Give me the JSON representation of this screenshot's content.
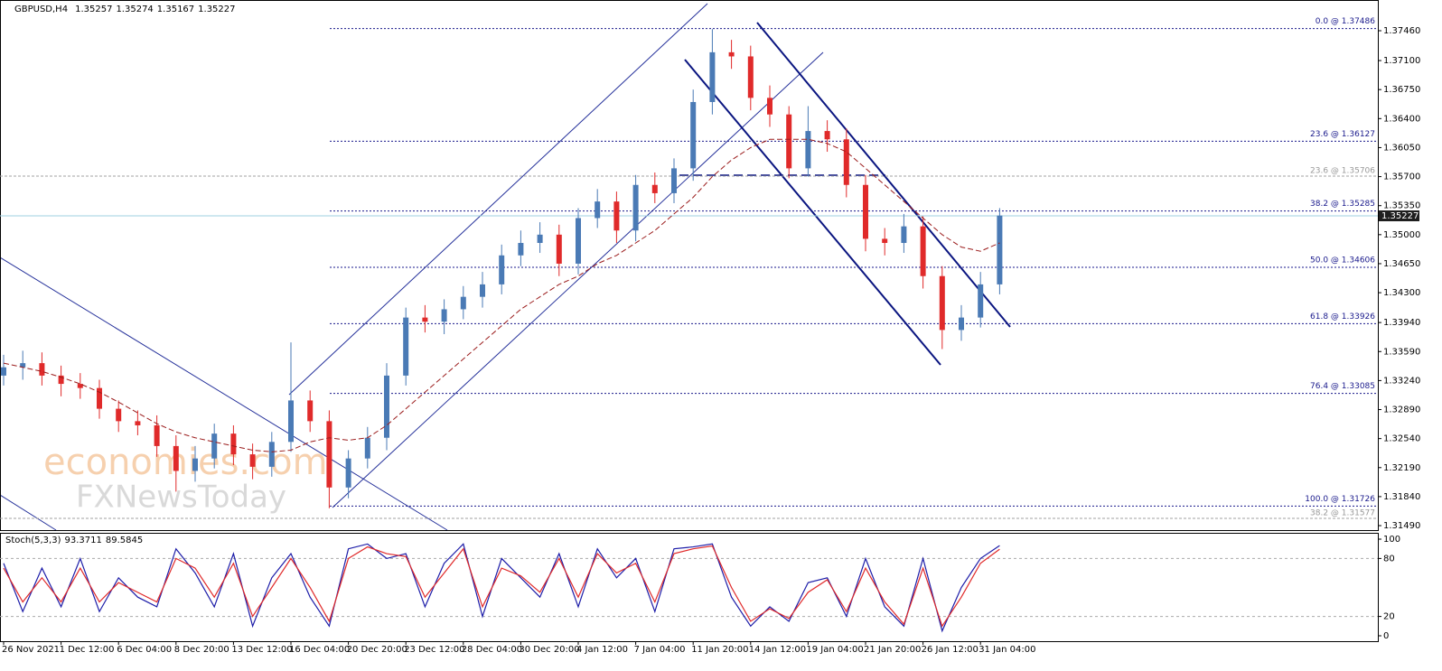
{
  "chart_data": [
    {
      "type": "candlestick",
      "title": "GBPUSD,H4",
      "header_values": [
        1.35257,
        1.35274,
        1.35167,
        1.35227
      ],
      "last_price": 1.35227,
      "categories": [
        "26 Nov 2021",
        null,
        null,
        "1 Dec 12:00",
        null,
        null,
        "6 Dec 04:00",
        null,
        null,
        "8 Dec 20:00",
        null,
        null,
        "13 Dec 12:00",
        null,
        null,
        "16 Dec 04:00",
        null,
        null,
        "20 Dec 20:00",
        null,
        null,
        "23 Dec 12:00",
        null,
        null,
        "28 Dec 04:00",
        null,
        null,
        "30 Dec 20:00",
        null,
        null,
        "4 Jan 12:00",
        null,
        null,
        "7 Jan 04:00",
        null,
        null,
        "11 Jan 20:00",
        null,
        null,
        "14 Jan 12:00",
        null,
        null,
        "19 Jan 04:00",
        null,
        null,
        "21 Jan 20:00",
        null,
        null,
        "26 Jan 12:00",
        null,
        null,
        "31 Jan 04:00",
        null
      ],
      "open": [
        1.333,
        1.334,
        1.3345,
        1.333,
        1.332,
        1.3315,
        1.329,
        1.3275,
        1.327,
        1.3245,
        1.3215,
        1.323,
        1.326,
        1.3235,
        1.322,
        1.325,
        1.33,
        1.3275,
        1.3195,
        1.323,
        1.3255,
        1.333,
        1.34,
        1.3395,
        1.341,
        1.3425,
        1.344,
        1.3475,
        1.349,
        1.35,
        1.3465,
        1.352,
        1.354,
        1.3505,
        1.356,
        1.355,
        1.358,
        1.366,
        1.372,
        1.3715,
        1.3665,
        1.3645,
        1.358,
        1.3625,
        1.3615,
        1.356,
        1.3495,
        1.349,
        1.351,
        1.345,
        1.3385,
        1.34,
        1.344
      ],
      "high": [
        1.3355,
        1.336,
        1.3358,
        1.3342,
        1.3333,
        1.3325,
        1.33,
        1.3288,
        1.3282,
        1.3258,
        1.3245,
        1.3272,
        1.327,
        1.3248,
        1.3262,
        1.337,
        1.3312,
        1.3288,
        1.324,
        1.3268,
        1.3345,
        1.3412,
        1.3415,
        1.3422,
        1.3438,
        1.3455,
        1.3488,
        1.3505,
        1.3515,
        1.3512,
        1.3532,
        1.3555,
        1.3552,
        1.3572,
        1.3575,
        1.3592,
        1.3675,
        1.3748,
        1.3735,
        1.3728,
        1.368,
        1.3655,
        1.3655,
        1.3638,
        1.3628,
        1.3572,
        1.3508,
        1.3525,
        1.3522,
        1.3462,
        1.3415,
        1.3455,
        1.3532
      ],
      "low": [
        1.3318,
        1.3325,
        1.3318,
        1.3305,
        1.3302,
        1.3278,
        1.3262,
        1.3258,
        1.3232,
        1.319,
        1.3202,
        1.3218,
        1.3222,
        1.3205,
        1.3208,
        1.3238,
        1.3262,
        1.317,
        1.3182,
        1.3218,
        1.324,
        1.3318,
        1.3382,
        1.338,
        1.3398,
        1.3412,
        1.3428,
        1.3462,
        1.3478,
        1.345,
        1.3452,
        1.3508,
        1.349,
        1.3492,
        1.3538,
        1.3538,
        1.3565,
        1.3645,
        1.37,
        1.365,
        1.363,
        1.3568,
        1.357,
        1.36,
        1.3545,
        1.348,
        1.3475,
        1.3478,
        1.3435,
        1.3362,
        1.3372,
        1.3388,
        1.3428
      ],
      "close": [
        1.334,
        1.3345,
        1.333,
        1.332,
        1.3315,
        1.329,
        1.3275,
        1.327,
        1.3245,
        1.3215,
        1.323,
        1.326,
        1.3235,
        1.322,
        1.325,
        1.33,
        1.3275,
        1.3195,
        1.323,
        1.3255,
        1.333,
        1.34,
        1.3395,
        1.341,
        1.3425,
        1.344,
        1.3475,
        1.349,
        1.35,
        1.3465,
        1.352,
        1.354,
        1.3505,
        1.356,
        1.355,
        1.358,
        1.366,
        1.372,
        1.3715,
        1.3665,
        1.3645,
        1.358,
        1.3625,
        1.3615,
        1.356,
        1.3495,
        1.349,
        1.351,
        1.345,
        1.3385,
        1.34,
        1.344,
        1.3523
      ],
      "up_color": "#4a7ab5",
      "down_color": "#e02a2a",
      "moving_average": {
        "color": "#9b1c1c",
        "values": [
          1.3345,
          1.334,
          1.3335,
          1.3328,
          1.332,
          1.331,
          1.3298,
          1.3285,
          1.3272,
          1.3262,
          1.3255,
          1.325,
          1.3245,
          1.324,
          1.3238,
          1.324,
          1.325,
          1.3255,
          1.3252,
          1.3255,
          1.327,
          1.329,
          1.331,
          1.333,
          1.335,
          1.337,
          1.339,
          1.341,
          1.3425,
          1.344,
          1.345,
          1.3465,
          1.3475,
          1.349,
          1.3505,
          1.3525,
          1.3545,
          1.357,
          1.359,
          1.3605,
          1.3615,
          1.3615,
          1.3615,
          1.361,
          1.36,
          1.358,
          1.356,
          1.354,
          1.352,
          1.35,
          1.3485,
          1.348,
          1.349
        ]
      },
      "fib_levels": [
        {
          "value": 1.37486,
          "label": "0.0 @ 1.37486"
        },
        {
          "value": 1.36127,
          "label": "23.6 @ 1.36127"
        },
        {
          "value": 1.35285,
          "label": "38.2 @ 1.35285"
        },
        {
          "value": 1.34606,
          "label": "50.0 @ 1.34606"
        },
        {
          "value": 1.33926,
          "label": "61.8 @ 1.33926"
        },
        {
          "value": 1.33085,
          "label": "76.4 @ 1.33085"
        },
        {
          "value": 1.31726,
          "label": "100.0 @ 1.31726"
        }
      ],
      "fib_levels_secondary": [
        {
          "value": 1.35706,
          "label": "23.6 @ 1.35706"
        },
        {
          "value": 1.31577,
          "label": "38.2 @ 1.31577"
        }
      ],
      "ylim": [
        1.31425,
        1.37787
      ],
      "yticks": [
        {
          "value": 1.3746,
          "label": "1.37460"
        },
        {
          "value": 1.371,
          "label": "1.37100"
        },
        {
          "value": 1.3675,
          "label": "1.36750"
        },
        {
          "value": 1.364,
          "label": "1.36400"
        },
        {
          "value": 1.3605,
          "label": "1.36050"
        },
        {
          "value": 1.357,
          "label": "1.35700"
        },
        {
          "value": 1.3535,
          "label": "1.35350"
        },
        {
          "value": 1.35,
          "label": "1.35000"
        },
        {
          "value": 1.3465,
          "label": "1.34650"
        },
        {
          "value": 1.343,
          "label": "1.34300"
        },
        {
          "value": 1.3394,
          "label": "1.33940"
        },
        {
          "value": 1.3359,
          "label": "1.33590"
        },
        {
          "value": 1.3324,
          "label": "1.33240"
        },
        {
          "value": 1.3289,
          "label": "1.32890"
        },
        {
          "value": 1.3254,
          "label": "1.32540"
        },
        {
          "value": 1.3219,
          "label": "1.32190"
        },
        {
          "value": 1.3184,
          "label": "1.31840"
        },
        {
          "value": 1.3149,
          "label": "1.31490"
        }
      ],
      "watermark": [
        "economies.com",
        "FXNewsToday"
      ]
    },
    {
      "type": "line",
      "title": "Stoch(5,3,3)",
      "indicator_values": [
        93.3711,
        89.5845
      ],
      "series": [
        {
          "color": "#1c1ca8",
          "values": [
            75,
            25,
            70,
            30,
            80,
            25,
            60,
            40,
            30,
            90,
            65,
            30,
            85,
            10,
            60,
            85,
            40,
            10,
            90,
            95,
            80,
            85,
            30,
            75,
            95,
            20,
            80,
            60,
            40,
            85,
            30,
            90,
            60,
            80,
            25,
            90,
            92,
            95,
            40,
            10,
            30,
            15,
            55,
            60,
            20,
            80,
            30,
            10,
            80,
            5,
            50,
            80,
            93.3711
          ]
        },
        {
          "color": "#e02a2a",
          "values": [
            70,
            35,
            60,
            35,
            70,
            35,
            55,
            45,
            35,
            80,
            70,
            40,
            75,
            20,
            50,
            80,
            50,
            15,
            80,
            92,
            85,
            82,
            40,
            65,
            90,
            30,
            70,
            62,
            45,
            80,
            40,
            85,
            65,
            75,
            35,
            85,
            90,
            93,
            50,
            15,
            28,
            18,
            45,
            58,
            25,
            70,
            35,
            12,
            70,
            10,
            40,
            75,
            89.5845
          ]
        }
      ],
      "ylim": [
        -5.6,
        105.6
      ],
      "yticks": [
        100,
        80,
        20,
        0
      ],
      "levels": [
        80,
        20
      ]
    }
  ]
}
